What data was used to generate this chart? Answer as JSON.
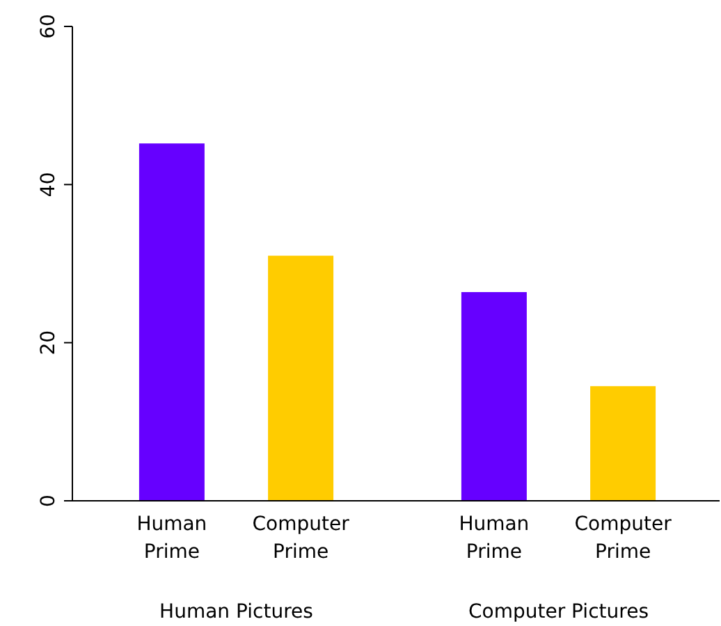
{
  "chart_data": {
    "type": "bar",
    "categories": [
      "Human Pictures",
      "Computer Pictures"
    ],
    "series": [
      {
        "name": "Human Prime",
        "color": "#6600ff",
        "values": [
          45.2,
          26.4
        ]
      },
      {
        "name": "Computer Prime",
        "color": "#ffcc00",
        "values": [
          31.0,
          14.5
        ]
      }
    ],
    "ylim": [
      0,
      60
    ],
    "yticks": [
      0,
      20,
      40,
      60
    ],
    "grid": false
  }
}
